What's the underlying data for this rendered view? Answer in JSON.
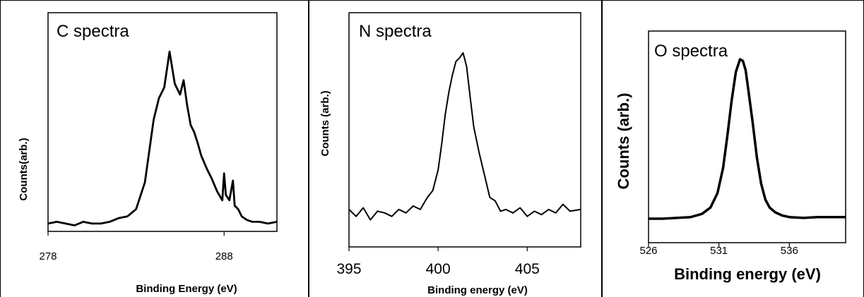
{
  "chart_data": [
    {
      "type": "line",
      "title": "C spectra",
      "xlabel": "Binding Energy (eV)",
      "ylabel": "Counts(arb.)",
      "xlim": [
        278,
        291
      ],
      "ylim": [
        0,
        1
      ],
      "xticks": [
        278,
        288
      ],
      "x": [
        278.0,
        278.5,
        279.0,
        279.5,
        280.0,
        280.5,
        281.0,
        281.5,
        282.0,
        282.5,
        283.0,
        283.5,
        284.0,
        284.3,
        284.6,
        284.9,
        285.2,
        285.5,
        285.7,
        285.9,
        286.1,
        286.3,
        286.5,
        286.7,
        287.0,
        287.3,
        287.6,
        287.9,
        288.0,
        288.1,
        288.3,
        288.5,
        288.6,
        288.8,
        289.0,
        289.3,
        289.6,
        290.0,
        290.5,
        291.0
      ],
      "series": [
        {
          "values": [
            0.02,
            0.03,
            0.02,
            0.01,
            0.03,
            0.02,
            0.02,
            0.03,
            0.05,
            0.06,
            0.1,
            0.25,
            0.6,
            0.72,
            0.78,
            0.98,
            0.8,
            0.74,
            0.82,
            0.68,
            0.57,
            0.53,
            0.47,
            0.4,
            0.33,
            0.27,
            0.2,
            0.15,
            0.3,
            0.18,
            0.15,
            0.26,
            0.12,
            0.1,
            0.06,
            0.04,
            0.03,
            0.03,
            0.02,
            0.03
          ]
        }
      ]
    },
    {
      "type": "line",
      "title": "N spectra",
      "xlabel": "Binding energy (eV)",
      "ylabel": "Counts (arb.)",
      "xlim": [
        395,
        408
      ],
      "ylim": [
        0,
        1
      ],
      "xticks": [
        395,
        400,
        405
      ],
      "x": [
        395.0,
        395.4,
        395.8,
        396.2,
        396.6,
        397.0,
        397.4,
        397.8,
        398.2,
        398.6,
        399.0,
        399.4,
        399.7,
        400.0,
        400.2,
        400.4,
        400.6,
        400.8,
        401.0,
        401.2,
        401.4,
        401.6,
        401.8,
        402.0,
        402.3,
        402.6,
        402.9,
        403.2,
        403.5,
        403.8,
        404.2,
        404.6,
        405.0,
        405.4,
        405.8,
        406.2,
        406.6,
        407.0,
        407.4,
        408.0
      ],
      "series": [
        {
          "values": [
            0.07,
            0.03,
            0.08,
            0.01,
            0.06,
            0.05,
            0.03,
            0.07,
            0.05,
            0.09,
            0.07,
            0.14,
            0.18,
            0.3,
            0.45,
            0.62,
            0.75,
            0.85,
            0.93,
            0.95,
            0.98,
            0.9,
            0.72,
            0.55,
            0.4,
            0.27,
            0.14,
            0.12,
            0.06,
            0.07,
            0.05,
            0.08,
            0.03,
            0.06,
            0.04,
            0.07,
            0.05,
            0.1,
            0.06,
            0.07
          ]
        }
      ]
    },
    {
      "type": "line",
      "title": "O spectra",
      "xlabel": "Binding energy (eV)",
      "ylabel": "Counts (arb.)",
      "xlim": [
        526,
        540
      ],
      "ylim": [
        0,
        1
      ],
      "xticks": [
        526,
        531,
        536
      ],
      "x": [
        526.0,
        527.0,
        528.0,
        529.0,
        529.8,
        530.4,
        530.9,
        531.3,
        531.6,
        531.9,
        532.2,
        532.5,
        532.7,
        532.9,
        533.1,
        533.4,
        533.7,
        534.0,
        534.3,
        534.6,
        535.0,
        535.5,
        536.0,
        537.0,
        538.0,
        539.0,
        540.0
      ],
      "series": [
        {
          "values": [
            0.0,
            0.0,
            0.005,
            0.01,
            0.03,
            0.07,
            0.16,
            0.32,
            0.52,
            0.74,
            0.92,
            1.0,
            0.99,
            0.93,
            0.8,
            0.6,
            0.38,
            0.22,
            0.12,
            0.07,
            0.04,
            0.02,
            0.01,
            0.005,
            0.01,
            0.01,
            0.01
          ]
        }
      ]
    }
  ]
}
